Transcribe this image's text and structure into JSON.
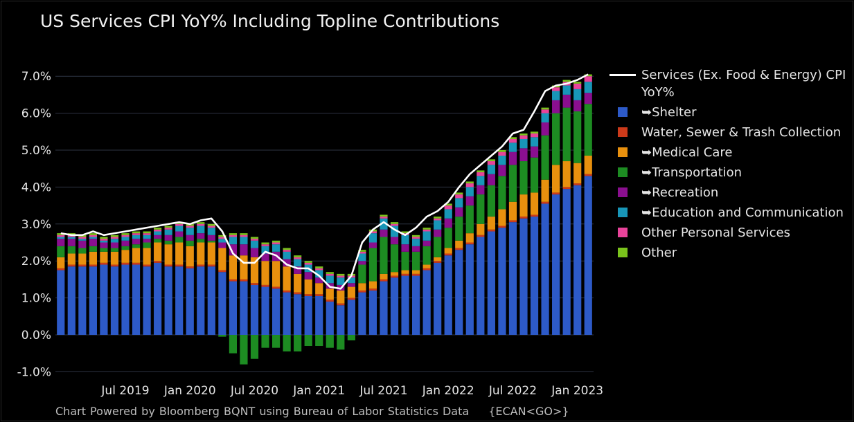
{
  "title": "US Services CPI YoY% Including Topline Contributions",
  "footer": {
    "text": "Chart Powered by Bloomberg BQNT using Bureau of Labor Statistics Data",
    "code": "{ECAN<GO>}"
  },
  "chart_data": {
    "type": "bar",
    "stacked": true,
    "ylim": [
      -1.2,
      7.2
    ],
    "yticks": [
      "7.0%",
      "6.0%",
      "5.0%",
      "4.0%",
      "3.0%",
      "2.0%",
      "1.0%",
      "0.0%",
      "-1.0%"
    ],
    "ytick_values": [
      7,
      6,
      5,
      4,
      3,
      2,
      1,
      0,
      -1
    ],
    "xticks": [
      {
        "label": "Jul 2019",
        "index": 6
      },
      {
        "label": "Jan 2020",
        "index": 12
      },
      {
        "label": "Jul 2020",
        "index": 18
      },
      {
        "label": "Jan 2021",
        "index": 24
      },
      {
        "label": "Jul 2021",
        "index": 30
      },
      {
        "label": "Jan 2022",
        "index": 36
      },
      {
        "label": "Jul 2022",
        "index": 42
      },
      {
        "label": "Jan 2023",
        "index": 48
      }
    ],
    "categories": [
      "Jan 2019",
      "Feb 2019",
      "Mar 2019",
      "Apr 2019",
      "May 2019",
      "Jun 2019",
      "Jul 2019",
      "Aug 2019",
      "Sep 2019",
      "Oct 2019",
      "Nov 2019",
      "Dec 2019",
      "Jan 2020",
      "Feb 2020",
      "Mar 2020",
      "Apr 2020",
      "May 2020",
      "Jun 2020",
      "Jul 2020",
      "Aug 2020",
      "Sep 2020",
      "Oct 2020",
      "Nov 2020",
      "Dec 2020",
      "Jan 2021",
      "Feb 2021",
      "Mar 2021",
      "Apr 2021",
      "May 2021",
      "Jun 2021",
      "Jul 2021",
      "Aug 2021",
      "Sep 2021",
      "Oct 2021",
      "Nov 2021",
      "Dec 2021",
      "Jan 2022",
      "Feb 2022",
      "Mar 2022",
      "Apr 2022",
      "May 2022",
      "Jun 2022",
      "Jul 2022",
      "Aug 2022",
      "Sep 2022",
      "Oct 2022",
      "Nov 2022",
      "Dec 2022",
      "Jan 2023",
      "Feb 2023"
    ],
    "series": [
      {
        "name": "➥Shelter",
        "color": "#2d5ac8",
        "values": [
          1.75,
          1.85,
          1.85,
          1.85,
          1.9,
          1.85,
          1.9,
          1.9,
          1.85,
          1.95,
          1.85,
          1.85,
          1.8,
          1.85,
          1.85,
          1.7,
          1.45,
          1.45,
          1.35,
          1.3,
          1.25,
          1.15,
          1.1,
          1.05,
          1.05,
          0.9,
          0.8,
          0.95,
          1.15,
          1.2,
          1.45,
          1.55,
          1.6,
          1.6,
          1.75,
          1.95,
          2.15,
          2.3,
          2.45,
          2.65,
          2.8,
          2.9,
          3.05,
          3.15,
          3.2,
          3.55,
          3.8,
          3.95,
          4.05,
          4.3
        ]
      },
      {
        "name": "Water, Sewer & Trash Collection",
        "color": "#cc3a1a",
        "values": [
          0.05,
          0.05,
          0.05,
          0.05,
          0.05,
          0.05,
          0.05,
          0.05,
          0.05,
          0.05,
          0.05,
          0.05,
          0.05,
          0.05,
          0.05,
          0.05,
          0.05,
          0.05,
          0.05,
          0.05,
          0.05,
          0.05,
          0.05,
          0.05,
          0.05,
          0.05,
          0.05,
          0.05,
          0.05,
          0.05,
          0.05,
          0.05,
          0.05,
          0.05,
          0.05,
          0.05,
          0.05,
          0.05,
          0.05,
          0.05,
          0.05,
          0.05,
          0.05,
          0.05,
          0.05,
          0.05,
          0.05,
          0.05,
          0.05,
          0.05
        ]
      },
      {
        "name": "➥Medical Care",
        "color": "#e8900e",
        "values": [
          0.3,
          0.3,
          0.3,
          0.35,
          0.3,
          0.35,
          0.35,
          0.4,
          0.45,
          0.5,
          0.55,
          0.6,
          0.55,
          0.6,
          0.6,
          0.6,
          0.65,
          0.65,
          0.7,
          0.65,
          0.7,
          0.65,
          0.5,
          0.4,
          0.3,
          0.3,
          0.35,
          0.3,
          0.2,
          0.2,
          0.15,
          0.1,
          0.1,
          0.1,
          0.1,
          0.1,
          0.15,
          0.2,
          0.25,
          0.3,
          0.35,
          0.45,
          0.5,
          0.6,
          0.6,
          0.6,
          0.75,
          0.7,
          0.55,
          0.5
        ]
      },
      {
        "name": "➥Transportation",
        "color": "#1d8c22",
        "values": [
          0.3,
          0.2,
          0.15,
          0.15,
          0.1,
          0.1,
          0.1,
          0.1,
          0.15,
          0.1,
          0.1,
          0.15,
          0.15,
          0.1,
          0.05,
          -0.05,
          -0.5,
          -0.8,
          -0.65,
          -0.35,
          -0.35,
          -0.45,
          -0.45,
          -0.3,
          -0.3,
          -0.35,
          -0.4,
          -0.15,
          0.5,
          0.9,
          1.0,
          0.75,
          0.5,
          0.5,
          0.5,
          0.55,
          0.55,
          0.65,
          0.75,
          0.8,
          0.85,
          0.9,
          1.0,
          0.9,
          0.95,
          1.2,
          1.4,
          1.45,
          1.4,
          1.4
        ]
      },
      {
        "name": "➥Recreation",
        "color": "#8a0f8f",
        "values": [
          0.2,
          0.2,
          0.2,
          0.2,
          0.15,
          0.15,
          0.15,
          0.15,
          0.1,
          0.1,
          0.15,
          0.15,
          0.15,
          0.15,
          0.15,
          0.15,
          0.3,
          0.3,
          0.25,
          0.2,
          0.25,
          0.2,
          0.2,
          0.2,
          0.15,
          0.15,
          0.15,
          0.1,
          0.1,
          0.15,
          0.2,
          0.2,
          0.2,
          0.15,
          0.15,
          0.2,
          0.25,
          0.25,
          0.25,
          0.25,
          0.3,
          0.3,
          0.35,
          0.35,
          0.3,
          0.35,
          0.35,
          0.35,
          0.3,
          0.3
        ]
      },
      {
        "name": "➥Education and Communication",
        "color": "#1896b8",
        "values": [
          0.05,
          0.05,
          0.05,
          0.05,
          0.05,
          0.1,
          0.1,
          0.1,
          0.1,
          0.1,
          0.15,
          0.15,
          0.2,
          0.2,
          0.2,
          0.1,
          0.2,
          0.2,
          0.2,
          0.2,
          0.2,
          0.2,
          0.2,
          0.2,
          0.2,
          0.2,
          0.2,
          0.15,
          0.2,
          0.25,
          0.3,
          0.3,
          0.25,
          0.2,
          0.25,
          0.25,
          0.25,
          0.25,
          0.25,
          0.25,
          0.25,
          0.25,
          0.25,
          0.25,
          0.25,
          0.25,
          0.25,
          0.25,
          0.3,
          0.3
        ]
      },
      {
        "name": "Other Personal Services",
        "color": "#e8439a",
        "values": [
          0.05,
          0.05,
          0.05,
          0.05,
          0.05,
          0.05,
          0.05,
          0.05,
          0.05,
          0.05,
          0.05,
          0.05,
          0.05,
          0.05,
          0.05,
          0.05,
          0.05,
          0.05,
          0.05,
          0.05,
          0.05,
          0.05,
          0.05,
          0.05,
          0.05,
          0.05,
          0.05,
          0.05,
          0.05,
          0.05,
          0.05,
          0.05,
          0.05,
          0.05,
          0.05,
          0.05,
          0.1,
          0.1,
          0.1,
          0.1,
          0.1,
          0.1,
          0.1,
          0.1,
          0.1,
          0.1,
          0.1,
          0.1,
          0.15,
          0.15
        ]
      },
      {
        "name": "Other",
        "color": "#7ac31c",
        "values": [
          0.05,
          0.05,
          0.05,
          0.05,
          0.05,
          0.05,
          0.05,
          0.05,
          0.05,
          0.05,
          0.05,
          0.05,
          0.05,
          0.05,
          0.05,
          0.05,
          0.05,
          0.05,
          0.05,
          0.05,
          0.05,
          0.05,
          0.05,
          0.05,
          0.05,
          0.05,
          0.05,
          0.05,
          0.05,
          0.05,
          0.05,
          0.05,
          0.05,
          0.05,
          0.05,
          0.05,
          0.05,
          0.05,
          0.05,
          0.05,
          0.05,
          0.05,
          0.05,
          0.05,
          0.05,
          0.05,
          0.05,
          0.05,
          0.05,
          0.05
        ]
      }
    ],
    "line": {
      "name": "Services (Ex. Food & Energy) CPI YoY%",
      "color": "#ffffff",
      "values": [
        2.75,
        2.7,
        2.7,
        2.8,
        2.7,
        2.75,
        2.8,
        2.85,
        2.9,
        2.95,
        3.0,
        3.05,
        3.0,
        3.1,
        3.15,
        2.8,
        2.2,
        1.95,
        1.95,
        2.25,
        2.15,
        1.9,
        1.8,
        1.8,
        1.6,
        1.3,
        1.25,
        1.6,
        2.5,
        2.85,
        3.05,
        2.85,
        2.7,
        2.9,
        3.2,
        3.35,
        3.6,
        4.0,
        4.35,
        4.6,
        4.85,
        5.1,
        5.45,
        5.55,
        6.05,
        6.6,
        6.75,
        6.8,
        6.9,
        7.05
      ]
    }
  }
}
